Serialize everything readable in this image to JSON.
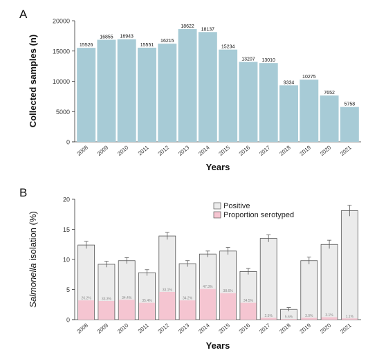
{
  "chart_data": [
    {
      "panel": "A",
      "type": "bar",
      "categories": [
        "2008",
        "2009",
        "2010",
        "2011",
        "2012",
        "2013",
        "2014",
        "2015",
        "2016",
        "2017",
        "2018",
        "2019",
        "2020",
        "2021"
      ],
      "values": [
        15526,
        16855,
        16943,
        15551,
        16215,
        18622,
        18137,
        15234,
        13207,
        13010,
        9334,
        10275,
        7652,
        5758
      ],
      "xlabel": "Years",
      "ylabel": "Collected samples (n)",
      "ylim": [
        0,
        20000
      ],
      "yticks": [
        0,
        5000,
        10000,
        15000,
        20000
      ],
      "bar_color": "#a7cbd6",
      "grid": false,
      "data_labels": true
    },
    {
      "panel": "B",
      "type": "bar",
      "categories": [
        "2008",
        "2009",
        "2010",
        "2011",
        "2012",
        "2013",
        "2014",
        "2015",
        "2016",
        "2017",
        "2018",
        "2019",
        "2020",
        "2021"
      ],
      "series": [
        {
          "name": "Positive",
          "values": [
            12.4,
            9.2,
            9.8,
            7.8,
            13.9,
            9.3,
            10.9,
            11.4,
            8.0,
            13.5,
            1.7,
            9.8,
            12.5,
            18.1
          ],
          "errors": [
            0.6,
            0.5,
            0.5,
            0.5,
            0.6,
            0.5,
            0.5,
            0.6,
            0.5,
            0.6,
            0.3,
            0.6,
            0.7,
            0.9
          ],
          "color": "#ebebeb"
        },
        {
          "name": "Proportion serotyped",
          "values": [
            3.2,
            3.1,
            3.3,
            2.8,
            4.6,
            3.2,
            5.1,
            4.4,
            2.8,
            0.3,
            0.1,
            0.3,
            0.4,
            0.2
          ],
          "color": "#f5c5d1",
          "percent_labels": [
            "26.2%",
            "33.3%",
            "34.4%",
            "35.4%",
            "33.1%",
            "34.2%",
            "47.3%",
            "38.6%",
            "34.5%",
            "2.5%",
            "5.6%",
            "3.0%",
            "3.1%",
            "1.1%"
          ]
        }
      ],
      "xlabel": "Years",
      "ylabel_prefix": "Salmonella",
      "ylabel_suffix": " isolation (%)",
      "ylim": [
        0,
        20
      ],
      "yticks": [
        0,
        5,
        10,
        15,
        20
      ],
      "legend": "top-right",
      "grid": false
    }
  ],
  "figure": {
    "panel_a_letter": "A",
    "panel_b_letter": "B"
  }
}
